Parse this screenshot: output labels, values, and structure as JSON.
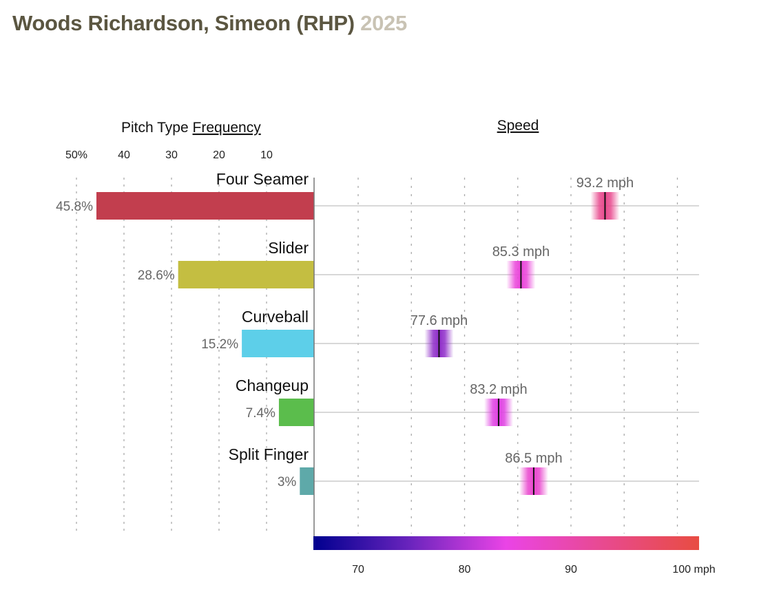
{
  "title": {
    "player": "Woods Richardson, Simeon (RHP)",
    "year": "2025"
  },
  "chart_data": [
    {
      "type": "bar",
      "title_prefix": "Pitch Type ",
      "title_link": "Frequency",
      "orientation": "horizontal-left",
      "categories": [
        "Four Seamer",
        "Slider",
        "Curveball",
        "Changeup",
        "Split Finger"
      ],
      "values": [
        45.8,
        28.6,
        15.2,
        7.4,
        3
      ],
      "value_labels": [
        "45.8%",
        "28.6%",
        "15.2%",
        "7.4%",
        "3%"
      ],
      "colors": [
        "#c23e4e",
        "#c4be41",
        "#5dcfe9",
        "#5bbd4c",
        "#5ea9a9"
      ],
      "xlim": [
        0,
        50
      ],
      "tick_values": [
        50,
        40,
        30,
        20,
        10
      ],
      "tick_labels": [
        "50%",
        "40",
        "30",
        "20",
        "10"
      ],
      "grid": true
    },
    {
      "type": "scatter",
      "title": "Speed",
      "categories": [
        "Four Seamer",
        "Slider",
        "Curveball",
        "Changeup",
        "Split Finger"
      ],
      "values": [
        93.2,
        85.3,
        77.6,
        83.2,
        86.5
      ],
      "value_labels": [
        "93.2 mph",
        "85.3 mph",
        "77.6 mph",
        "83.2 mph",
        "86.5 mph"
      ],
      "xlim": [
        66,
        102
      ],
      "tick_values": [
        70,
        80,
        90,
        100
      ],
      "tick_labels": [
        "70",
        "80",
        "90",
        "100 mph"
      ],
      "colorscale": [
        [
          66,
          "#00008f"
        ],
        [
          75,
          "#6a24bd"
        ],
        [
          84,
          "#ea44e6"
        ],
        [
          93,
          "#e84a90"
        ],
        [
          102,
          "#e84c42"
        ]
      ],
      "grid": true
    }
  ]
}
